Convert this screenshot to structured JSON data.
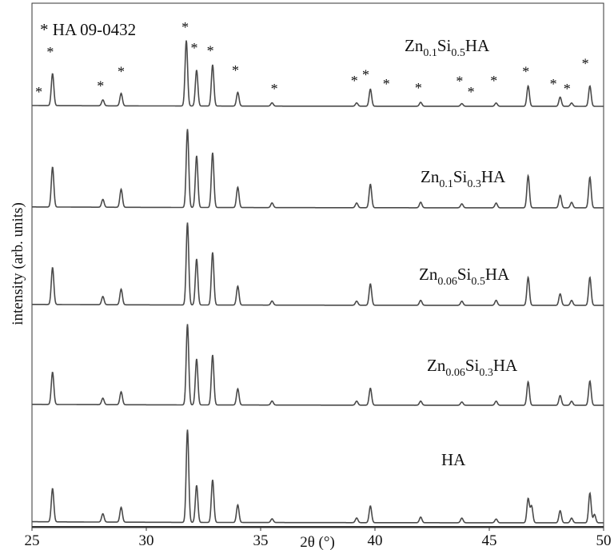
{
  "chart_data": {
    "type": "line",
    "title": "",
    "xlabel": "2θ (°)",
    "ylabel": "intensity (arb. units)",
    "xlim": [
      25,
      50
    ],
    "xticks": [
      25,
      30,
      35,
      40,
      45,
      50
    ],
    "grid": false,
    "legend": "none",
    "reference_label": "* HA 09-0432",
    "series": [
      {
        "name": "Zn0.1Si0.5HA",
        "label_base": "Zn",
        "label_sub1": "0.1",
        "label_mid": "Si",
        "label_sub2": "0.5",
        "label_tail": "HA",
        "peaks": [
          [
            25.9,
            0.49
          ],
          [
            28.1,
            0.09
          ],
          [
            28.9,
            0.19
          ],
          [
            31.75,
            1.0
          ],
          [
            32.2,
            0.55
          ],
          [
            32.9,
            0.63
          ],
          [
            34.0,
            0.21
          ],
          [
            35.5,
            0.05
          ],
          [
            39.2,
            0.05
          ],
          [
            39.8,
            0.26
          ],
          [
            42.0,
            0.06
          ],
          [
            43.8,
            0.04
          ],
          [
            45.3,
            0.05
          ],
          [
            46.7,
            0.31
          ],
          [
            48.1,
            0.14
          ],
          [
            48.6,
            0.05
          ],
          [
            49.4,
            0.31
          ]
        ]
      },
      {
        "name": "Zn0.1Si0.3HA",
        "label_base": "Zn",
        "label_sub1": "0.1",
        "label_mid": "Si",
        "label_sub2": "0.3",
        "label_tail": "HA",
        "peaks": [
          [
            25.9,
            0.51
          ],
          [
            28.1,
            0.1
          ],
          [
            28.9,
            0.23
          ],
          [
            31.8,
            1.0
          ],
          [
            32.2,
            0.66
          ],
          [
            32.9,
            0.7
          ],
          [
            34.0,
            0.26
          ],
          [
            35.5,
            0.06
          ],
          [
            39.2,
            0.06
          ],
          [
            39.8,
            0.3
          ],
          [
            42.0,
            0.07
          ],
          [
            43.8,
            0.05
          ],
          [
            45.3,
            0.06
          ],
          [
            46.7,
            0.41
          ],
          [
            48.1,
            0.16
          ],
          [
            48.6,
            0.07
          ],
          [
            49.4,
            0.39
          ]
        ]
      },
      {
        "name": "Zn0.06Si0.5HA",
        "label_base": "Zn",
        "label_sub1": "0.06",
        "label_mid": "Si",
        "label_sub2": "0.5",
        "label_tail": "HA",
        "peaks": [
          [
            25.9,
            0.45
          ],
          [
            28.1,
            0.1
          ],
          [
            28.9,
            0.19
          ],
          [
            31.8,
            1.0
          ],
          [
            32.2,
            0.56
          ],
          [
            32.9,
            0.64
          ],
          [
            34.0,
            0.23
          ],
          [
            35.5,
            0.05
          ],
          [
            39.2,
            0.05
          ],
          [
            39.8,
            0.26
          ],
          [
            42.0,
            0.06
          ],
          [
            43.8,
            0.05
          ],
          [
            45.3,
            0.06
          ],
          [
            46.7,
            0.34
          ],
          [
            48.1,
            0.14
          ],
          [
            48.6,
            0.06
          ],
          [
            49.4,
            0.34
          ]
        ]
      },
      {
        "name": "Zn0.06Si0.3HA",
        "label_base": "Zn",
        "label_sub1": "0.06",
        "label_mid": "Si",
        "label_sub2": "0.3",
        "label_tail": "HA",
        "peaks": [
          [
            25.9,
            0.4
          ],
          [
            28.1,
            0.08
          ],
          [
            28.9,
            0.16
          ],
          [
            31.8,
            1.0
          ],
          [
            32.2,
            0.57
          ],
          [
            32.9,
            0.62
          ],
          [
            34.0,
            0.2
          ],
          [
            35.5,
            0.05
          ],
          [
            39.2,
            0.05
          ],
          [
            39.8,
            0.21
          ],
          [
            42.0,
            0.05
          ],
          [
            43.8,
            0.04
          ],
          [
            45.3,
            0.05
          ],
          [
            46.7,
            0.29
          ],
          [
            48.1,
            0.12
          ],
          [
            48.6,
            0.05
          ],
          [
            49.4,
            0.3
          ]
        ]
      },
      {
        "name": "HA",
        "label_base": "HA",
        "label_sub1": "",
        "label_mid": "",
        "label_sub2": "",
        "label_tail": "",
        "peaks": [
          [
            25.9,
            0.36
          ],
          [
            28.1,
            0.09
          ],
          [
            28.9,
            0.16
          ],
          [
            31.8,
            1.0
          ],
          [
            32.2,
            0.4
          ],
          [
            32.9,
            0.46
          ],
          [
            34.0,
            0.19
          ],
          [
            35.5,
            0.04
          ],
          [
            39.2,
            0.05
          ],
          [
            39.8,
            0.18
          ],
          [
            42.0,
            0.06
          ],
          [
            43.8,
            0.05
          ],
          [
            45.3,
            0.04
          ],
          [
            46.7,
            0.26
          ],
          [
            46.85,
            0.18
          ],
          [
            48.1,
            0.13
          ],
          [
            48.6,
            0.05
          ],
          [
            49.4,
            0.32
          ],
          [
            49.6,
            0.09
          ]
        ]
      }
    ],
    "reference_markers": [
      25.3,
      25.8,
      28.0,
      28.9,
      31.7,
      32.1,
      32.8,
      33.9,
      35.6,
      39.1,
      39.6,
      40.5,
      41.9,
      43.7,
      44.2,
      45.2,
      46.6,
      47.8,
      48.4,
      49.2
    ],
    "marker_symbol": "*"
  }
}
